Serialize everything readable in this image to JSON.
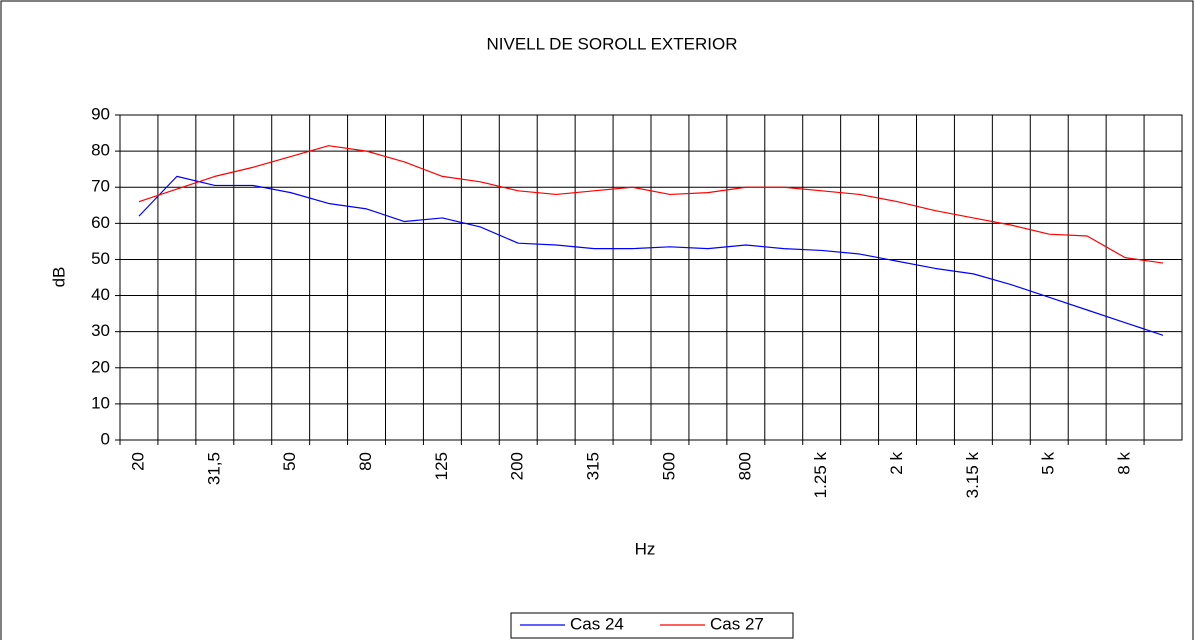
{
  "chart_data": {
    "type": "line",
    "title": "NIVELL DE SOROLL EXTERIOR",
    "x_label": "Hz",
    "y_label": "dB",
    "categories": [
      "20",
      null,
      "31,5",
      null,
      "50",
      null,
      "80",
      null,
      "125",
      null,
      "200",
      null,
      "315",
      null,
      "500",
      null,
      "800",
      null,
      "1.25 k",
      null,
      "2 k",
      null,
      "3.15 k",
      null,
      "5 k",
      null,
      "8 k",
      null
    ],
    "series": [
      {
        "name": "Cas 24",
        "color": "#0000ff",
        "values": [
          62,
          73,
          70.5,
          70.5,
          68.5,
          65.5,
          64,
          60.5,
          61.5,
          59,
          54.5,
          54,
          53,
          53,
          53.5,
          53,
          54,
          53,
          52.5,
          51.5,
          49.5,
          47.5,
          46,
          43,
          39.5,
          36,
          32.5,
          29
        ]
      },
      {
        "name": "Cas 27",
        "color": "#ff0000",
        "values": [
          66,
          69.5,
          73,
          75.5,
          78.5,
          81.5,
          80,
          77,
          73,
          71.5,
          69,
          68,
          69,
          70,
          68,
          68.5,
          70,
          70,
          69,
          68,
          66,
          63.5,
          61.5,
          59.5,
          57,
          56.5,
          50.5,
          49
        ]
      }
    ],
    "ylim": [
      0,
      90
    ],
    "yticks": [
      0,
      10,
      20,
      30,
      40,
      50,
      60,
      70,
      80,
      90
    ],
    "grid": true,
    "legend": "bottom"
  }
}
